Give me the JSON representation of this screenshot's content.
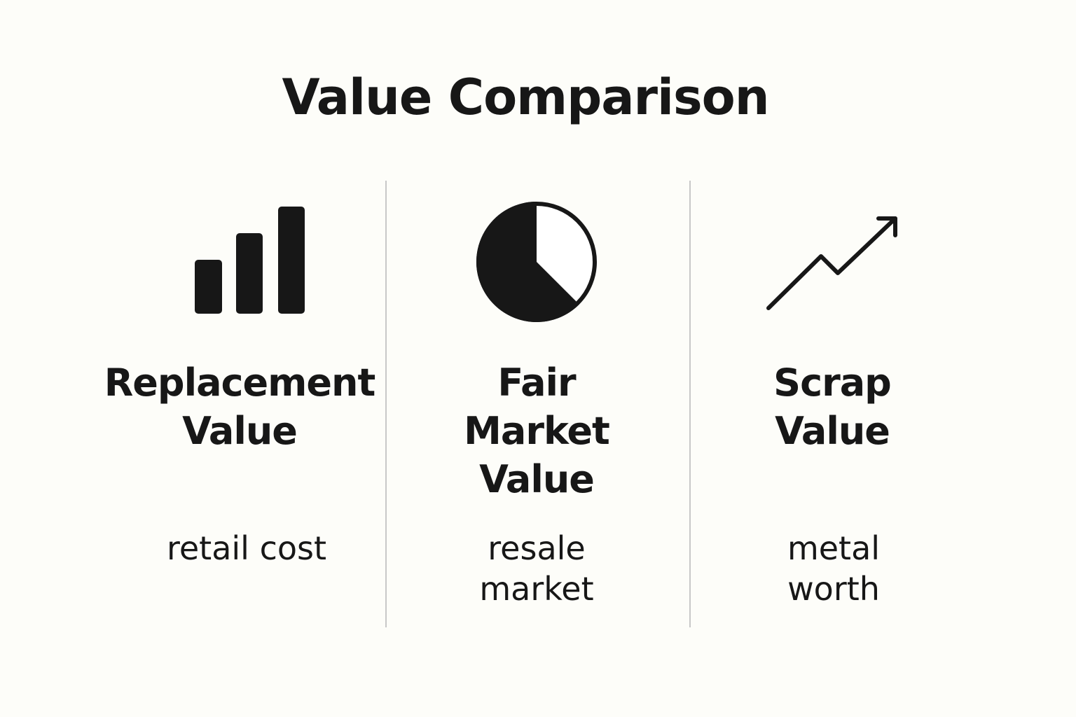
{
  "title": "Value Comparison",
  "colors": {
    "background": "#fdfdf9",
    "ink": "#171717",
    "divider": "#c8c8c8"
  },
  "columns": [
    {
      "icon": "bar-chart-icon",
      "heading_lines": [
        "Replacement",
        "Value"
      ],
      "sub_lines": [
        "retail cost"
      ]
    },
    {
      "icon": "pie-chart-icon",
      "heading_lines": [
        "Fair",
        "Market",
        "Value"
      ],
      "sub_lines": [
        "resale",
        "market"
      ]
    },
    {
      "icon": "trend-up-arrow-icon",
      "heading_lines": [
        "Scrap",
        "Value"
      ],
      "sub_lines": [
        "metal",
        "worth"
      ]
    }
  ]
}
